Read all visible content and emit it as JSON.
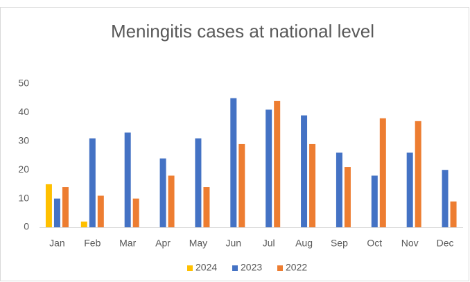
{
  "chart_data": {
    "type": "bar",
    "title": "Meningitis cases at national level",
    "categories": [
      "Jan",
      "Feb",
      "Mar",
      "Apr",
      "May",
      "Jun",
      "Jul",
      "Aug",
      "Sep",
      "Oct",
      "Nov",
      "Dec"
    ],
    "series": [
      {
        "name": "2024",
        "color": "#ffc000",
        "values": [
          15,
          2,
          null,
          null,
          null,
          null,
          null,
          null,
          null,
          null,
          null,
          null
        ]
      },
      {
        "name": "2023",
        "color": "#4472c4",
        "values": [
          10,
          31,
          33,
          24,
          31,
          45,
          41,
          39,
          26,
          18,
          26,
          20
        ]
      },
      {
        "name": "2022",
        "color": "#ed7d31",
        "values": [
          14,
          11,
          10,
          18,
          14,
          29,
          44,
          29,
          21,
          38,
          37,
          9
        ]
      }
    ],
    "ylim": [
      0,
      50
    ],
    "yticks": [
      0,
      10,
      20,
      30,
      40,
      50
    ],
    "grid": false,
    "legend": "bottom"
  }
}
